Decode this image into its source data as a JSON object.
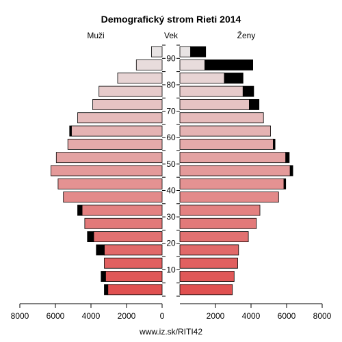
{
  "chart_data": {
    "type": "bar",
    "orientation": "horizontal-pyramid",
    "title": "Demografický strom Rieti 2014",
    "left_label": "Muži",
    "center_label": "Vek",
    "right_label": "Ženy",
    "source": "www.iz.sk/RITI42",
    "age_groups": [
      "0-4",
      "5-9",
      "10-14",
      "15-19",
      "20-24",
      "25-29",
      "30-34",
      "35-39",
      "40-44",
      "45-49",
      "50-54",
      "55-59",
      "60-64",
      "65-69",
      "70-74",
      "75-79",
      "80-84",
      "85-89",
      "90+"
    ],
    "age_ticks": [
      "10",
      "20",
      "30",
      "40",
      "50",
      "60",
      "70",
      "80",
      "90"
    ],
    "x_ticks": [
      "8000",
      "6000",
      "4000",
      "2000",
      "0",
      "2000",
      "4000",
      "6000",
      "8000"
    ],
    "xlim": [
      0,
      8000
    ],
    "series": [
      {
        "name": "Muži",
        "values": [
          3050,
          3180,
          3250,
          3250,
          3850,
          4350,
          4500,
          5550,
          5850,
          6250,
          5950,
          5300,
          5100,
          4750,
          3900,
          3550,
          2500,
          1450,
          600
        ],
        "extra": [
          200,
          250,
          0,
          450,
          350,
          0,
          250,
          0,
          0,
          0,
          0,
          0,
          100,
          0,
          0,
          0,
          0,
          0,
          0
        ]
      },
      {
        "name": "Ženy",
        "values": [
          2950,
          3050,
          3250,
          3300,
          3850,
          4300,
          4500,
          5550,
          5850,
          6200,
          5950,
          5250,
          5100,
          4700,
          3900,
          3550,
          2500,
          1400,
          600
        ],
        "extra": [
          0,
          0,
          0,
          0,
          0,
          0,
          0,
          0,
          100,
          150,
          200,
          100,
          0,
          0,
          550,
          600,
          1050,
          2700,
          850
        ]
      }
    ],
    "colors": {
      "young": "#e05050",
      "old": "#e8e4e4",
      "extra": "#000000"
    }
  }
}
